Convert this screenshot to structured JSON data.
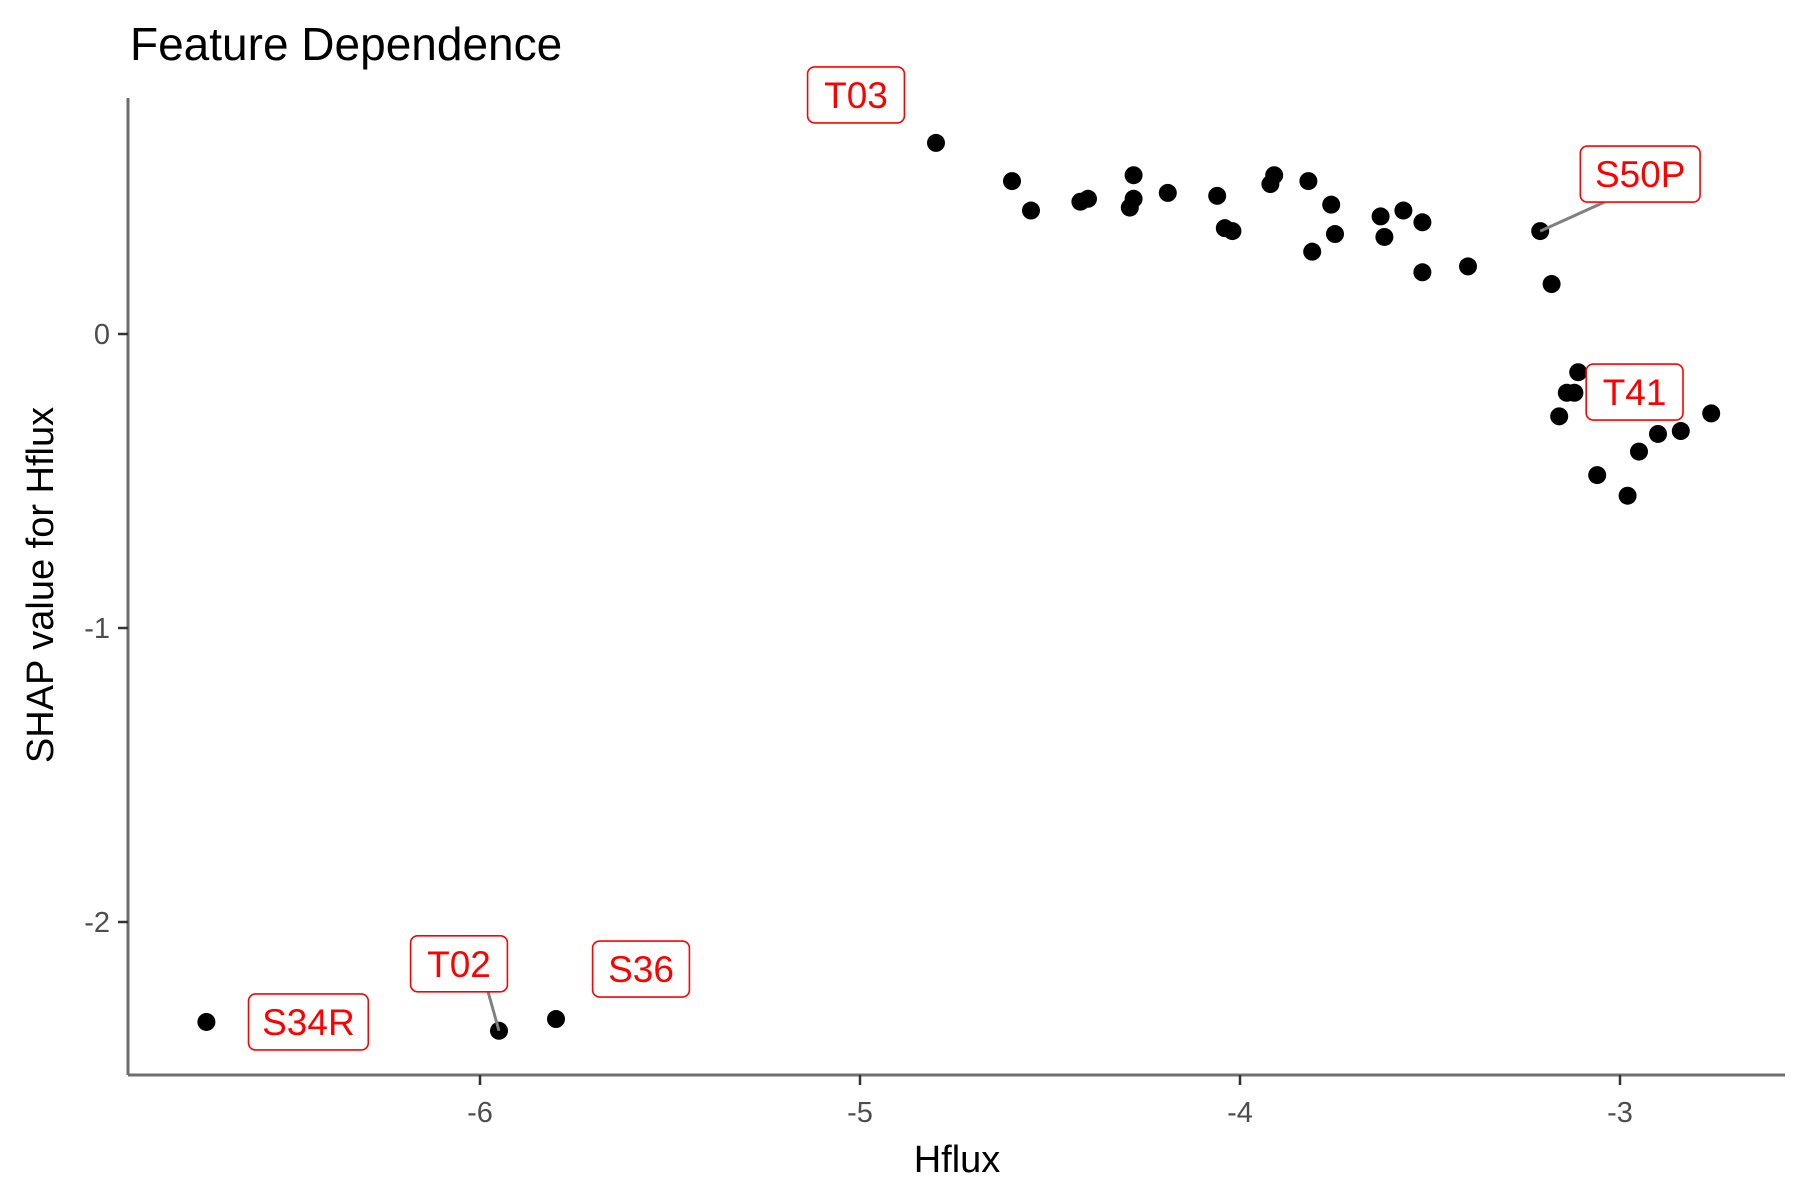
{
  "chart_data": {
    "type": "scatter",
    "title": "Feature Dependence",
    "xlabel": "Hflux",
    "ylabel": "SHAP value for Hflux",
    "xlim": [
      -6.9,
      -2.55
    ],
    "ylim": [
      -2.52,
      0.8
    ],
    "x_ticks": [
      -6,
      -5,
      -4,
      -3
    ],
    "y_ticks": [
      -2,
      -1,
      0
    ],
    "grid": false,
    "legend": "none",
    "point_color": "#000000",
    "label_color": "#ff0000",
    "points": [
      {
        "x": -6.72,
        "y": -2.34
      },
      {
        "x": -5.95,
        "y": -2.37
      },
      {
        "x": -5.8,
        "y": -2.33
      },
      {
        "x": -4.8,
        "y": 0.65
      },
      {
        "x": -4.6,
        "y": 0.52
      },
      {
        "x": -4.55,
        "y": 0.42
      },
      {
        "x": -4.42,
        "y": 0.45
      },
      {
        "x": -4.4,
        "y": 0.46
      },
      {
        "x": -4.29,
        "y": 0.43
      },
      {
        "x": -4.28,
        "y": 0.54
      },
      {
        "x": -4.28,
        "y": 0.46
      },
      {
        "x": -4.19,
        "y": 0.48
      },
      {
        "x": -4.06,
        "y": 0.47
      },
      {
        "x": -4.04,
        "y": 0.36
      },
      {
        "x": -4.02,
        "y": 0.35
      },
      {
        "x": -3.92,
        "y": 0.51
      },
      {
        "x": -3.91,
        "y": 0.54
      },
      {
        "x": -3.82,
        "y": 0.52
      },
      {
        "x": -3.81,
        "y": 0.28
      },
      {
        "x": -3.76,
        "y": 0.44
      },
      {
        "x": -3.75,
        "y": 0.34
      },
      {
        "x": -3.63,
        "y": 0.4
      },
      {
        "x": -3.62,
        "y": 0.33
      },
      {
        "x": -3.57,
        "y": 0.42
      },
      {
        "x": -3.52,
        "y": 0.38
      },
      {
        "x": -3.52,
        "y": 0.21
      },
      {
        "x": -3.4,
        "y": 0.23
      },
      {
        "x": -3.21,
        "y": 0.35
      },
      {
        "x": -3.18,
        "y": 0.17
      },
      {
        "x": -3.16,
        "y": -0.28
      },
      {
        "x": -3.14,
        "y": -0.2
      },
      {
        "x": -3.12,
        "y": -0.2
      },
      {
        "x": -3.11,
        "y": -0.13
      },
      {
        "x": -3.06,
        "y": -0.48
      },
      {
        "x": -2.98,
        "y": -0.55
      },
      {
        "x": -2.95,
        "y": -0.4
      },
      {
        "x": -2.9,
        "y": -0.34
      },
      {
        "x": -2.84,
        "y": -0.33
      },
      {
        "x": -2.76,
        "y": -0.27
      }
    ],
    "labels": [
      {
        "text": "T03",
        "x": -4.8,
        "y": 0.65
      },
      {
        "text": "S50P",
        "x": -3.21,
        "y": 0.35
      },
      {
        "text": "T41",
        "x": -3.18,
        "y": 0.17
      },
      {
        "text": "T02",
        "x": -5.95,
        "y": -2.37
      },
      {
        "text": "S36",
        "x": -5.8,
        "y": -2.33
      },
      {
        "text": "S34R",
        "x": -6.72,
        "y": -2.34
      }
    ]
  }
}
